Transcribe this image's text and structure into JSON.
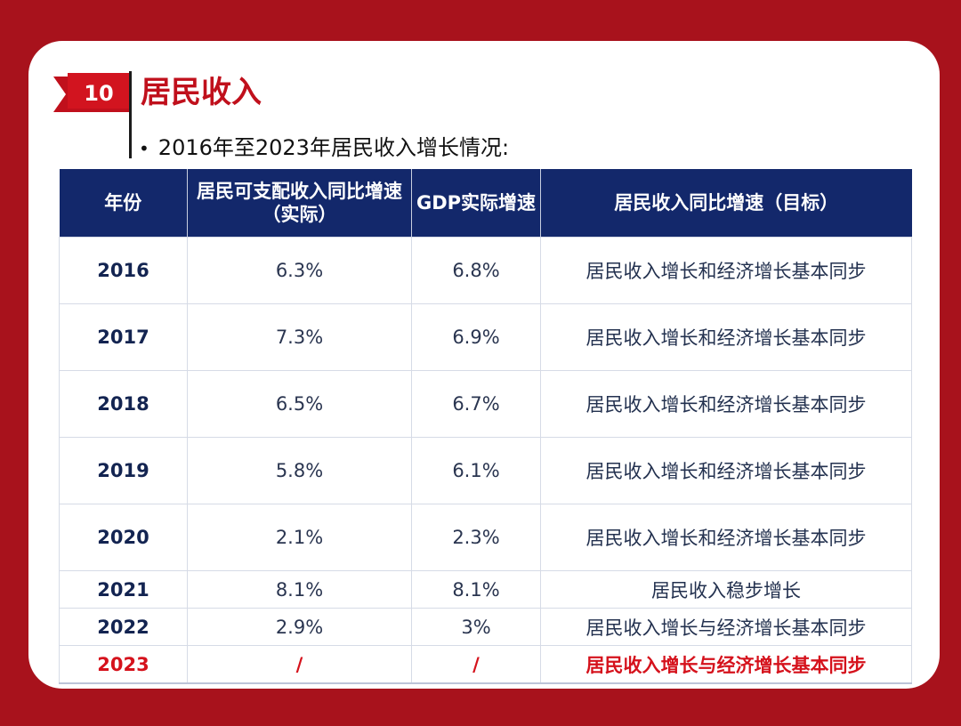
{
  "header": {
    "section_number": "10",
    "title": "居民收入",
    "subtitle": "2016年至2023年居民收入增长情况:",
    "bullet": "•"
  },
  "table": {
    "columns": [
      "年份",
      "居民可支配收入同比增速（实际）",
      "GDP实际增速",
      "居民收入同比增速（目标）"
    ],
    "rows": [
      {
        "year": "2016",
        "income_growth": "6.3%",
        "gdp_growth": "6.8%",
        "target": "居民收入增长和经济增长基本同步"
      },
      {
        "year": "2017",
        "income_growth": "7.3%",
        "gdp_growth": "6.9%",
        "target": "居民收入增长和经济增长基本同步"
      },
      {
        "year": "2018",
        "income_growth": "6.5%",
        "gdp_growth": "6.7%",
        "target": "居民收入增长和经济增长基本同步"
      },
      {
        "year": "2019",
        "income_growth": "5.8%",
        "gdp_growth": "6.1%",
        "target": "居民收入增长和经济增长基本同步"
      },
      {
        "year": "2020",
        "income_growth": "2.1%",
        "gdp_growth": "2.3%",
        "target": "居民收入增长和经济增长基本同步"
      },
      {
        "year": "2021",
        "income_growth": "8.1%",
        "gdp_growth": "8.1%",
        "target": "居民收入稳步增长"
      },
      {
        "year": "2022",
        "income_growth": "2.9%",
        "gdp_growth": "3%",
        "target": "居民收入增长与经济增长基本同步"
      },
      {
        "year": "2023",
        "income_growth": "/",
        "gdp_growth": "/",
        "target": "居民收入增长与经济增长基本同步"
      }
    ]
  },
  "colors": {
    "background": "#a8121c",
    "accent_red": "#c0101c",
    "header_navy": "#13286b",
    "highlight_red": "#d5121c"
  }
}
